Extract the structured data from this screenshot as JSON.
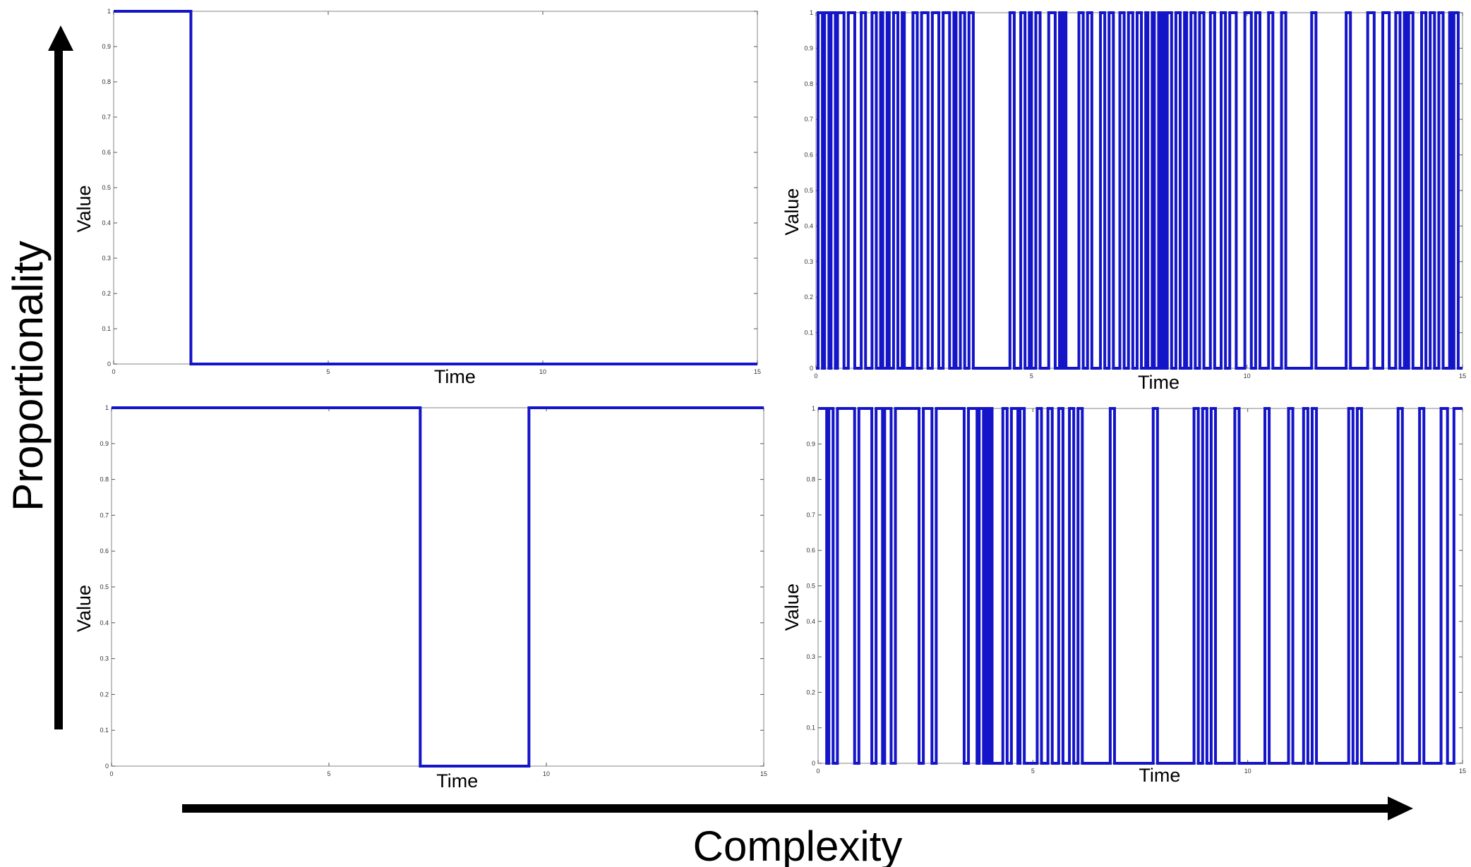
{
  "figure": {
    "y_axis_label": "Proportionality",
    "x_axis_label": "Complexity",
    "arrow_color": "#000000"
  },
  "chart_data": [
    {
      "type": "line",
      "position": "top-left",
      "xlabel": "Time",
      "ylabel": "Value",
      "xlim": [
        0,
        15
      ],
      "ylim": [
        0,
        1
      ],
      "x_ticks": [
        0,
        5,
        10,
        15
      ],
      "y_ticks": [
        0,
        0.1,
        0.2,
        0.3,
        0.4,
        0.5,
        0.6,
        0.7,
        0.8,
        0.9,
        1
      ],
      "line_color": "#1414c8",
      "series": [
        {
          "values": [
            [
              0,
              1
            ],
            [
              1.8,
              0
            ],
            [
              15,
              0
            ]
          ]
        }
      ]
    },
    {
      "type": "line",
      "position": "top-right",
      "xlabel": "Time",
      "ylabel": "Value",
      "xlim": [
        0,
        15
      ],
      "ylim": [
        0,
        1
      ],
      "x_ticks": [
        0,
        5,
        10,
        15
      ],
      "y_ticks": [
        0,
        0.1,
        0.2,
        0.3,
        0.4,
        0.5,
        0.6,
        0.7,
        0.8,
        0.9,
        1
      ],
      "line_color": "#1414c8",
      "series": [
        {
          "values": [
            [
              0,
              0
            ],
            [
              0.05,
              1
            ],
            [
              0.15,
              0
            ],
            [
              0.2,
              1
            ],
            [
              0.3,
              0
            ],
            [
              0.35,
              1
            ],
            [
              0.45,
              0
            ],
            [
              0.5,
              1
            ],
            [
              0.65,
              0
            ],
            [
              0.75,
              1
            ],
            [
              0.9,
              0
            ],
            [
              1.05,
              1
            ],
            [
              1.15,
              0
            ],
            [
              1.3,
              1
            ],
            [
              1.4,
              0
            ],
            [
              1.5,
              1
            ],
            [
              1.55,
              0
            ],
            [
              1.65,
              1
            ],
            [
              1.7,
              0
            ],
            [
              1.8,
              1
            ],
            [
              1.9,
              0
            ],
            [
              2.0,
              1
            ],
            [
              2.05,
              0
            ],
            [
              2.25,
              1
            ],
            [
              2.35,
              0
            ],
            [
              2.45,
              1
            ],
            [
              2.6,
              0
            ],
            [
              2.7,
              1
            ],
            [
              2.85,
              0
            ],
            [
              2.95,
              1
            ],
            [
              3.1,
              0
            ],
            [
              3.2,
              1
            ],
            [
              3.25,
              0
            ],
            [
              3.35,
              1
            ],
            [
              3.45,
              0
            ],
            [
              3.55,
              1
            ],
            [
              3.65,
              0
            ],
            [
              4.5,
              1
            ],
            [
              4.6,
              0
            ],
            [
              4.75,
              1
            ],
            [
              4.85,
              0
            ],
            [
              4.95,
              1
            ],
            [
              5.0,
              0
            ],
            [
              5.1,
              1
            ],
            [
              5.2,
              0
            ],
            [
              5.4,
              1
            ],
            [
              5.55,
              0
            ],
            [
              5.65,
              1
            ],
            [
              5.7,
              0
            ],
            [
              5.75,
              1
            ],
            [
              5.8,
              0
            ],
            [
              6.1,
              1
            ],
            [
              6.2,
              0
            ],
            [
              6.3,
              1
            ],
            [
              6.4,
              0
            ],
            [
              6.6,
              1
            ],
            [
              6.7,
              0
            ],
            [
              6.8,
              1
            ],
            [
              6.9,
              0
            ],
            [
              7.05,
              1
            ],
            [
              7.15,
              0
            ],
            [
              7.25,
              1
            ],
            [
              7.35,
              0
            ],
            [
              7.45,
              1
            ],
            [
              7.55,
              0
            ],
            [
              7.65,
              1
            ],
            [
              7.7,
              0
            ],
            [
              7.8,
              1
            ],
            [
              7.85,
              0
            ],
            [
              7.95,
              1
            ],
            [
              8.0,
              0
            ],
            [
              8.05,
              1
            ],
            [
              8.1,
              0
            ],
            [
              8.15,
              1
            ],
            [
              8.25,
              0
            ],
            [
              8.35,
              1
            ],
            [
              8.45,
              0
            ],
            [
              8.55,
              1
            ],
            [
              8.6,
              0
            ],
            [
              8.7,
              1
            ],
            [
              8.8,
              0
            ],
            [
              8.9,
              1
            ],
            [
              9.0,
              0
            ],
            [
              9.15,
              1
            ],
            [
              9.25,
              0
            ],
            [
              9.4,
              1
            ],
            [
              9.5,
              0
            ],
            [
              9.6,
              1
            ],
            [
              9.75,
              0
            ],
            [
              9.95,
              1
            ],
            [
              10.1,
              0
            ],
            [
              10.2,
              1
            ],
            [
              10.3,
              0
            ],
            [
              10.5,
              1
            ],
            [
              10.6,
              0
            ],
            [
              10.8,
              1
            ],
            [
              10.9,
              0
            ],
            [
              11.5,
              1
            ],
            [
              11.6,
              0
            ],
            [
              12.3,
              1
            ],
            [
              12.4,
              0
            ],
            [
              12.8,
              1
            ],
            [
              12.95,
              0
            ],
            [
              13.15,
              1
            ],
            [
              13.3,
              0
            ],
            [
              13.45,
              1
            ],
            [
              13.55,
              0
            ],
            [
              13.65,
              1
            ],
            [
              13.7,
              0
            ],
            [
              13.75,
              1
            ],
            [
              13.85,
              0
            ],
            [
              14.05,
              1
            ],
            [
              14.15,
              0
            ],
            [
              14.25,
              1
            ],
            [
              14.35,
              0
            ],
            [
              14.45,
              1
            ],
            [
              14.55,
              0
            ],
            [
              14.7,
              1
            ],
            [
              14.75,
              0
            ],
            [
              14.8,
              1
            ],
            [
              14.9,
              0
            ],
            [
              15,
              0
            ]
          ]
        }
      ]
    },
    {
      "type": "line",
      "position": "bottom-left",
      "xlabel": "Time",
      "ylabel": "Value",
      "xlim": [
        0,
        15
      ],
      "ylim": [
        0,
        1
      ],
      "x_ticks": [
        0,
        5,
        10,
        15
      ],
      "y_ticks": [
        0,
        0.1,
        0.2,
        0.3,
        0.4,
        0.5,
        0.6,
        0.7,
        0.8,
        0.9,
        1
      ],
      "line_color": "#1414c8",
      "series": [
        {
          "values": [
            [
              0,
              1
            ],
            [
              7.1,
              0
            ],
            [
              9.6,
              1
            ],
            [
              15,
              1
            ]
          ]
        }
      ]
    },
    {
      "type": "line",
      "position": "bottom-right",
      "xlabel": "Time",
      "ylabel": "Value",
      "xlim": [
        0,
        15
      ],
      "ylim": [
        0,
        1
      ],
      "x_ticks": [
        0,
        5,
        10,
        15
      ],
      "y_ticks": [
        0,
        0.1,
        0.2,
        0.3,
        0.4,
        0.5,
        0.6,
        0.7,
        0.8,
        0.9,
        1
      ],
      "line_color": "#1414c8",
      "series": [
        {
          "values": [
            [
              0,
              1
            ],
            [
              0.2,
              0
            ],
            [
              0.25,
              1
            ],
            [
              0.35,
              0
            ],
            [
              0.45,
              1
            ],
            [
              0.85,
              0
            ],
            [
              0.95,
              1
            ],
            [
              1.25,
              0
            ],
            [
              1.35,
              1
            ],
            [
              1.5,
              0
            ],
            [
              1.55,
              1
            ],
            [
              1.7,
              0
            ],
            [
              1.8,
              1
            ],
            [
              2.35,
              0
            ],
            [
              2.45,
              1
            ],
            [
              2.65,
              0
            ],
            [
              2.75,
              1
            ],
            [
              3.4,
              0
            ],
            [
              3.5,
              1
            ],
            [
              3.7,
              0
            ],
            [
              3.75,
              1
            ],
            [
              3.85,
              0
            ],
            [
              3.9,
              1
            ],
            [
              3.95,
              0
            ],
            [
              4.0,
              1
            ],
            [
              4.05,
              0
            ],
            [
              4.3,
              1
            ],
            [
              4.4,
              0
            ],
            [
              4.5,
              1
            ],
            [
              4.65,
              0
            ],
            [
              4.7,
              1
            ],
            [
              4.8,
              0
            ],
            [
              5.1,
              1
            ],
            [
              5.2,
              0
            ],
            [
              5.35,
              1
            ],
            [
              5.45,
              0
            ],
            [
              5.6,
              1
            ],
            [
              5.7,
              0
            ],
            [
              5.85,
              1
            ],
            [
              5.95,
              0
            ],
            [
              6.05,
              1
            ],
            [
              6.15,
              0
            ],
            [
              6.8,
              1
            ],
            [
              6.9,
              0
            ],
            [
              7.8,
              1
            ],
            [
              7.9,
              0
            ],
            [
              8.75,
              1
            ],
            [
              8.85,
              0
            ],
            [
              8.95,
              1
            ],
            [
              9.05,
              0
            ],
            [
              9.15,
              1
            ],
            [
              9.25,
              0
            ],
            [
              9.7,
              1
            ],
            [
              9.8,
              0
            ],
            [
              10.4,
              1
            ],
            [
              10.5,
              0
            ],
            [
              10.95,
              1
            ],
            [
              11.05,
              0
            ],
            [
              11.3,
              1
            ],
            [
              11.4,
              0
            ],
            [
              11.5,
              1
            ],
            [
              11.6,
              0
            ],
            [
              12.35,
              1
            ],
            [
              12.45,
              0
            ],
            [
              12.55,
              1
            ],
            [
              12.65,
              0
            ],
            [
              13.5,
              1
            ],
            [
              13.6,
              0
            ],
            [
              14.0,
              1
            ],
            [
              14.1,
              0
            ],
            [
              14.5,
              1
            ],
            [
              14.65,
              0
            ],
            [
              14.8,
              1
            ],
            [
              15,
              1
            ]
          ]
        }
      ]
    }
  ]
}
